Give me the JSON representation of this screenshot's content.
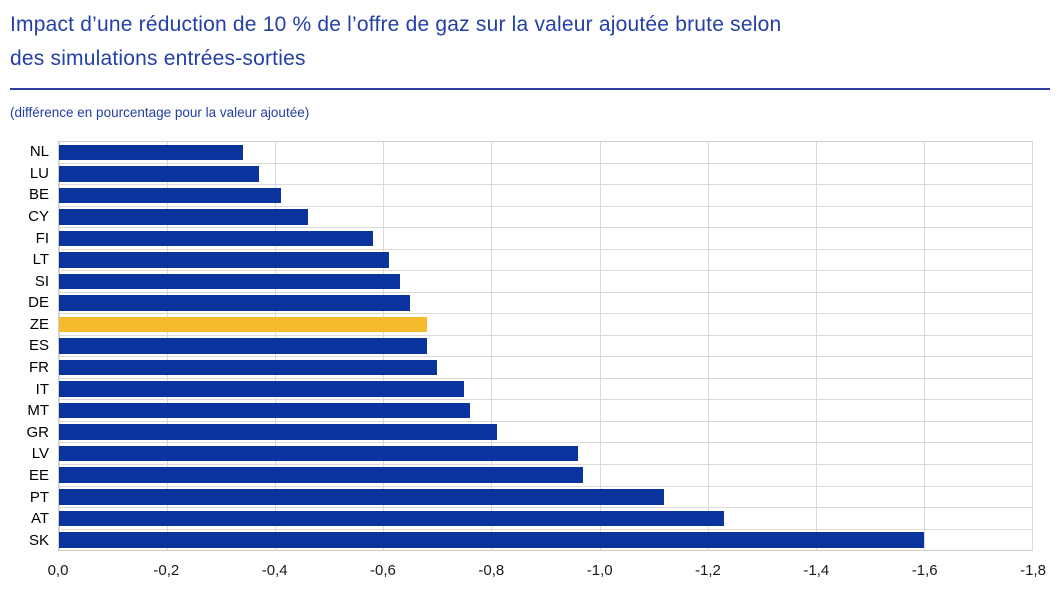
{
  "header": {
    "title": "Impact d’une réduction de 10 % de l’offre de gaz sur la valeur ajoutée brute selon des simulations entrées-sorties",
    "title_lines": [
      "Impact d’une réduction de 10 % de l’offre de gaz sur la valeur ajoutée brute selon",
      "des simulations entrées-sorties"
    ],
    "subtitle": "(différence en pourcentage pour la valeur ajoutée)"
  },
  "colors": {
    "title_blue": "#2340a6",
    "bar_blue": "#0a339e",
    "highlight_yellow": "#f6bb2d",
    "gridline": "#d9d9d9",
    "plot_border": "#cfcfcf",
    "axis_text": "#1a1a1a"
  },
  "chart_data": {
    "type": "bar",
    "orientation": "horizontal",
    "title": "Impact d’une réduction de 10 % de l’offre de gaz sur la valeur ajoutée brute selon des simulations entrées-sorties",
    "subtitle": "(différence en pourcentage pour la valeur ajoutée)",
    "categories": [
      "NL",
      "LU",
      "BE",
      "CY",
      "FI",
      "LT",
      "SI",
      "DE",
      "ZE",
      "ES",
      "FR",
      "IT",
      "MT",
      "GR",
      "LV",
      "EE",
      "PT",
      "AT",
      "SK"
    ],
    "values": [
      -0.34,
      -0.37,
      -0.41,
      -0.46,
      -0.58,
      -0.61,
      -0.63,
      -0.65,
      -0.68,
      -0.68,
      -0.7,
      -0.75,
      -0.76,
      -0.81,
      -0.96,
      -0.97,
      -1.12,
      -1.23,
      -1.6
    ],
    "highlighted_category": "ZE",
    "highlight_note": "ZE (zone euro) bar shown in yellow, all others dark blue",
    "xlim": [
      0,
      -1.8
    ],
    "x_tick_values": [
      0,
      -0.2,
      -0.4,
      -0.6,
      -0.8,
      -1.0,
      -1.2,
      -1.4,
      -1.6,
      -1.8
    ],
    "x_ticks": [
      "0,0",
      "-0,2",
      "-0,4",
      "-0,6",
      "-0,8",
      "-1,0",
      "-1,2",
      "-1,4",
      "-1,6",
      "-1,8"
    ],
    "grid": "on",
    "legend": "none"
  }
}
